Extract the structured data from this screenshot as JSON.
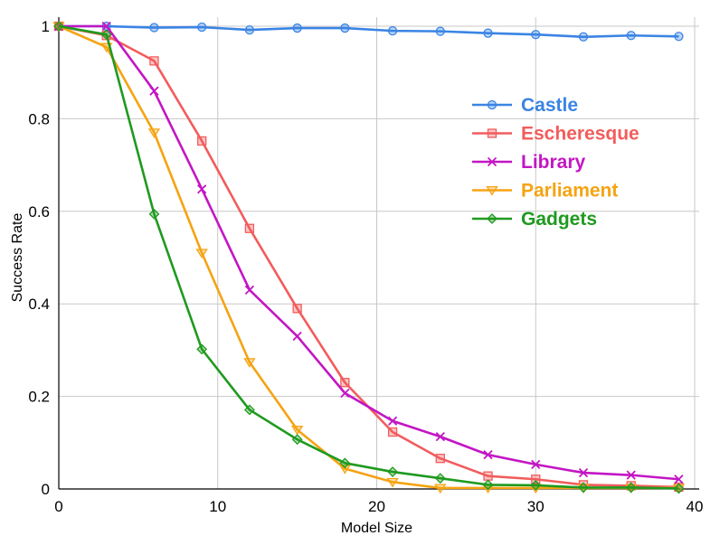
{
  "chart_data": {
    "type": "line",
    "title": "",
    "xlabel": "Model Size",
    "ylabel": "Success Rate",
    "xlim": [
      0,
      40
    ],
    "ylim": [
      0,
      1
    ],
    "xticks": [
      0,
      10,
      20,
      30,
      40
    ],
    "yticks": [
      0,
      0.2,
      0.4,
      0.6,
      0.8,
      1
    ],
    "xtick_labels": [
      "0",
      "10",
      "20",
      "30",
      "40"
    ],
    "ytick_labels": [
      "0",
      "0.2",
      "0.4",
      "0.6",
      "0.8",
      "1"
    ],
    "grid": true,
    "legend_position": "upper-right",
    "x": [
      0,
      3,
      6,
      9,
      12,
      15,
      18,
      21,
      24,
      27,
      30,
      33,
      36,
      39
    ],
    "series": [
      {
        "name": "Castle",
        "color": "#3a84e4",
        "marker": "circle",
        "values": [
          1.0,
          1.0,
          0.997,
          0.998,
          0.992,
          0.996,
          0.996,
          0.99,
          0.989,
          0.985,
          0.982,
          0.977,
          0.98,
          0.978
        ]
      },
      {
        "name": "Escheresque",
        "color": "#f25c5c",
        "marker": "square",
        "values": [
          1.0,
          0.98,
          0.925,
          0.752,
          0.563,
          0.39,
          0.23,
          0.123,
          0.066,
          0.028,
          0.021,
          0.009,
          0.007,
          0.004
        ]
      },
      {
        "name": "Library",
        "color": "#c316c4",
        "marker": "x",
        "values": [
          1.0,
          1.0,
          0.86,
          0.648,
          0.43,
          0.33,
          0.207,
          0.147,
          0.113,
          0.074,
          0.053,
          0.035,
          0.03,
          0.021
        ]
      },
      {
        "name": "Parliament",
        "color": "#f5a312",
        "marker": "triangle-down",
        "values": [
          1.0,
          0.955,
          0.77,
          0.51,
          0.274,
          0.128,
          0.044,
          0.015,
          0.002,
          0.002,
          0.002,
          0.002,
          0.002,
          0.002
        ]
      },
      {
        "name": "Gadgets",
        "color": "#1f9a1f",
        "marker": "diamond",
        "values": [
          1.0,
          0.982,
          0.594,
          0.302,
          0.171,
          0.107,
          0.056,
          0.037,
          0.023,
          0.009,
          0.008,
          0.003,
          0.003,
          0.001
        ]
      }
    ]
  }
}
